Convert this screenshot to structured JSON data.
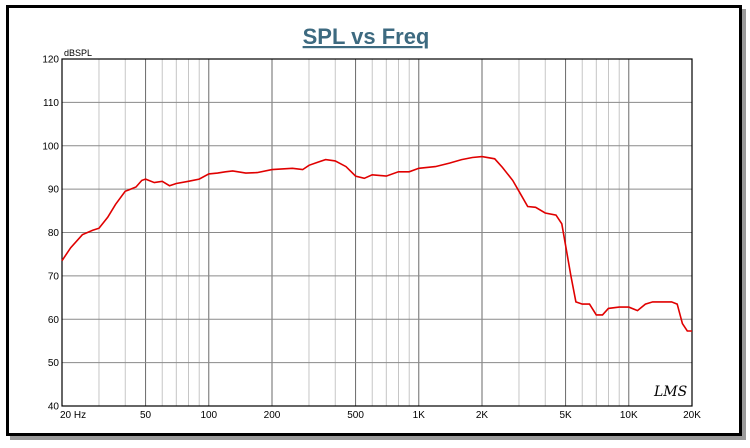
{
  "chart_data": {
    "type": "line",
    "title": "SPL vs Freq",
    "ylabel": "dBSPL",
    "xlabel": "",
    "x_scale": "log",
    "xlim": [
      20,
      20000
    ],
    "ylim": [
      40,
      120
    ],
    "grid": true,
    "y_ticks": [
      "40",
      "50",
      "60",
      "70",
      "80",
      "90",
      "100",
      "110",
      "120"
    ],
    "x_ticks": [
      {
        "value": 20,
        "label": "20  Hz"
      },
      {
        "value": 50,
        "label": "50"
      },
      {
        "value": 100,
        "label": "100"
      },
      {
        "value": 200,
        "label": "200"
      },
      {
        "value": 500,
        "label": "500"
      },
      {
        "value": 1000,
        "label": "1K"
      },
      {
        "value": 2000,
        "label": "2K"
      },
      {
        "value": 5000,
        "label": "5K"
      },
      {
        "value": 10000,
        "label": "10K"
      },
      {
        "value": 20000,
        "label": "20K"
      }
    ],
    "series": [
      {
        "color": "#e00000",
        "x": [
          20,
          22,
          25,
          28,
          30,
          33,
          36,
          40,
          45,
          48,
          50,
          55,
          60,
          65,
          70,
          80,
          90,
          100,
          110,
          120,
          130,
          150,
          170,
          200,
          250,
          280,
          300,
          330,
          360,
          400,
          450,
          500,
          550,
          600,
          700,
          800,
          900,
          1000,
          1200,
          1400,
          1600,
          1800,
          2000,
          2300,
          2500,
          2800,
          3000,
          3300,
          3600,
          4000,
          4500,
          4800,
          5000,
          5300,
          5600,
          6000,
          6500,
          7000,
          7500,
          8000,
          9000,
          10000,
          11000,
          12000,
          13000,
          14000,
          15000,
          16000,
          17000,
          18000,
          19000,
          20000
        ],
        "values": [
          73.5,
          76.5,
          79.5,
          80.5,
          81,
          83.5,
          86.5,
          89.5,
          90.5,
          92,
          92.3,
          91.5,
          91.8,
          90.8,
          91.3,
          91.8,
          92.3,
          93.5,
          93.7,
          94,
          94.2,
          93.7,
          93.8,
          94.5,
          94.8,
          94.5,
          95.5,
          96.2,
          96.8,
          96.5,
          95.2,
          93,
          92.5,
          93.3,
          93,
          94,
          94,
          94.8,
          95.2,
          96,
          96.8,
          97.3,
          97.5,
          97,
          95,
          92,
          89.5,
          86,
          85.8,
          84.5,
          84,
          82,
          77,
          70,
          64,
          63.5,
          63.5,
          61,
          61,
          62.5,
          62.8,
          62.8,
          62,
          63.5,
          64,
          64,
          64,
          64,
          63.5,
          59,
          57.3,
          57.3
        ]
      }
    ]
  },
  "signature": "LMS"
}
